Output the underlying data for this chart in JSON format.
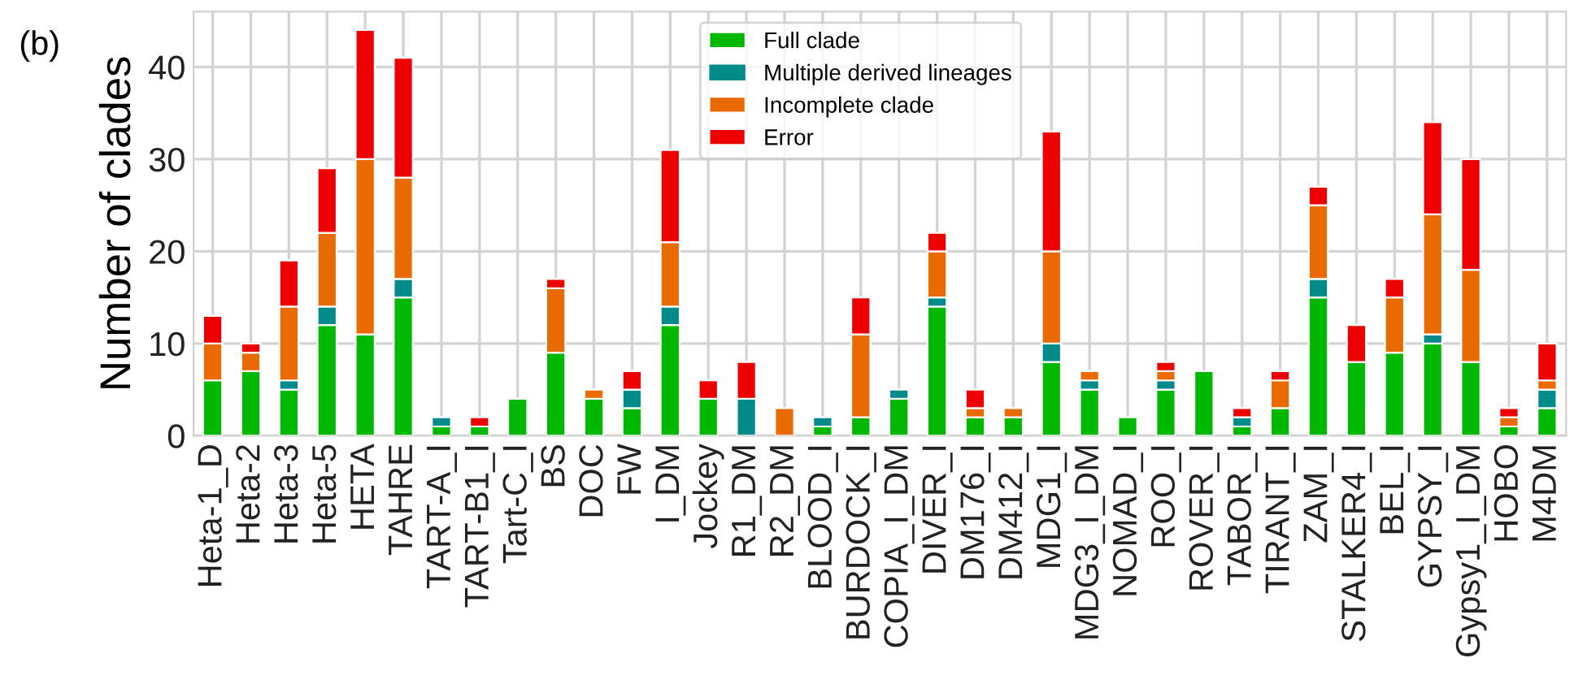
{
  "chart_data": {
    "type": "bar",
    "stacked": true,
    "ylabel": "Number of clades",
    "annotations": [
      "(b)"
    ],
    "categories": [
      "Heta-1_D",
      "Heta-2",
      "Heta-3",
      "Heta-5",
      "HETA",
      "TAHRE",
      "TART-A_I",
      "TART-B1_I",
      "Tart-C_I",
      "BS",
      "DOC",
      "FW",
      "I_DM",
      "Jockey",
      "R1_DM",
      "R2_DM",
      "BLOOD_I",
      "BURDOCK_I",
      "COPIA_I_DM",
      "DIVER_I",
      "DM176_I",
      "DM412_I",
      "MDG1_I",
      "MDG3_I_DM",
      "NOMAD_I",
      "ROO_I",
      "ROVER_I",
      "TABOR_I",
      "TIRANT_I",
      "ZAM_I",
      "STALKER4_I",
      "BEL_I",
      "GYPSY_I",
      "Gypsy1_I_DM",
      "HOBO",
      "M4DM"
    ],
    "series": [
      {
        "name": "Full clade",
        "color": "#00b800",
        "values": [
          6,
          7,
          5,
          12,
          11,
          15,
          1,
          1,
          4,
          9,
          4,
          3,
          12,
          4,
          0,
          0,
          1,
          2,
          4,
          14,
          2,
          2,
          8,
          5,
          2,
          5,
          7,
          1,
          3,
          15,
          8,
          9,
          10,
          8,
          1,
          3
        ]
      },
      {
        "name": "Multiple derived lineages",
        "color": "#008b8b",
        "values": [
          0,
          0,
          1,
          2,
          0,
          2,
          1,
          0,
          0,
          0,
          0,
          2,
          2,
          0,
          4,
          0,
          1,
          0,
          1,
          1,
          0,
          0,
          2,
          1,
          0,
          1,
          0,
          1,
          0,
          2,
          0,
          0,
          1,
          0,
          0,
          2
        ]
      },
      {
        "name": "Incomplete clade",
        "color": "#e86a00",
        "values": [
          4,
          2,
          8,
          8,
          19,
          11,
          0,
          0,
          0,
          7,
          1,
          0,
          7,
          0,
          0,
          3,
          0,
          9,
          0,
          5,
          1,
          1,
          10,
          1,
          0,
          1,
          0,
          0,
          3,
          8,
          0,
          6,
          13,
          10,
          1,
          1
        ]
      },
      {
        "name": "Error",
        "color": "#ee0000",
        "values": [
          3,
          1,
          5,
          7,
          14,
          13,
          0,
          1,
          0,
          1,
          0,
          2,
          10,
          2,
          4,
          0,
          0,
          4,
          0,
          2,
          2,
          0,
          13,
          0,
          0,
          1,
          0,
          1,
          1,
          2,
          4,
          2,
          10,
          12,
          1,
          4
        ]
      }
    ],
    "ylim": [
      0,
      46
    ],
    "yticks": [
      0,
      10,
      20,
      30,
      40
    ],
    "grid": true,
    "legend": "top"
  }
}
